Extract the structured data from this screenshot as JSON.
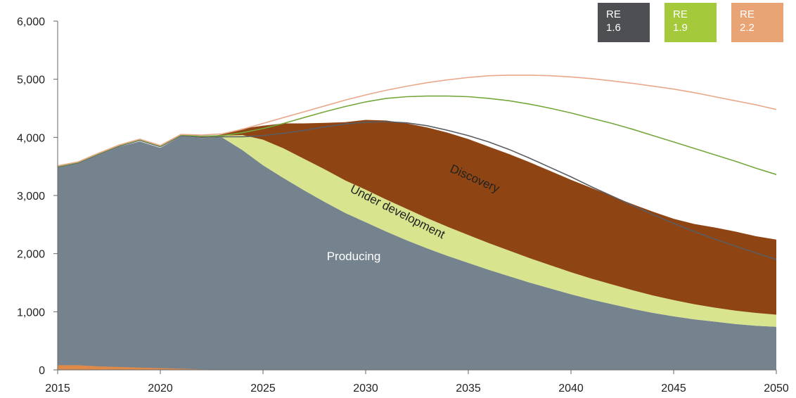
{
  "chart_data": {
    "type": "area",
    "ylim": [
      0,
      6000
    ],
    "xlim": [
      2015,
      2050
    ],
    "yticks": [
      "0",
      "1,000",
      "2,000",
      "3,000",
      "4,000",
      "5,000",
      "6,000"
    ],
    "xticks": [
      "2015",
      "2020",
      "2025",
      "2030",
      "2035",
      "2040",
      "2045",
      "2050"
    ],
    "grid": false,
    "legend_position": "top-right",
    "x": [
      2015,
      2016,
      2017,
      2018,
      2019,
      2020,
      2021,
      2022,
      2023,
      2024,
      2025,
      2026,
      2027,
      2028,
      2029,
      2030,
      2031,
      2032,
      2033,
      2034,
      2035,
      2036,
      2037,
      2038,
      2039,
      2040,
      2041,
      2042,
      2043,
      2044,
      2045,
      2046,
      2047,
      2048,
      2049,
      2050
    ],
    "stacked_series": [
      {
        "name": "Producing",
        "color": "#75838f",
        "values": [
          3480,
          3550,
          3700,
          3840,
          3930,
          3820,
          4020,
          3990,
          4000,
          3780,
          3520,
          3300,
          3090,
          2890,
          2700,
          2540,
          2380,
          2230,
          2090,
          1960,
          1840,
          1720,
          1610,
          1500,
          1400,
          1300,
          1210,
          1130,
          1050,
          980,
          920,
          870,
          830,
          790,
          760,
          740
        ]
      },
      {
        "name": "Under development",
        "color": "#d8e48e",
        "values": [
          0,
          0,
          0,
          0,
          0,
          0,
          0,
          0,
          30,
          260,
          440,
          510,
          540,
          560,
          560,
          560,
          550,
          540,
          520,
          500,
          480,
          460,
          440,
          420,
          400,
          380,
          360,
          340,
          320,
          300,
          280,
          260,
          240,
          230,
          220,
          210
        ]
      },
      {
        "name": "Discovery",
        "color": "#8f4413",
        "values": [
          0,
          0,
          0,
          0,
          0,
          0,
          0,
          0,
          20,
          110,
          240,
          430,
          610,
          800,
          1000,
          1200,
          1360,
          1470,
          1560,
          1620,
          1650,
          1660,
          1660,
          1650,
          1620,
          1590,
          1560,
          1520,
          1480,
          1440,
          1400,
          1380,
          1380,
          1360,
          1320,
          1290
        ]
      }
    ],
    "bottom_series": {
      "color": "#e08a4a",
      "values": [
        80,
        80,
        60,
        50,
        40,
        30,
        20,
        10,
        5,
        0,
        0,
        0,
        0,
        0,
        0,
        0,
        0,
        0,
        0,
        0,
        0,
        0,
        0,
        0,
        0,
        0,
        0,
        0,
        0,
        0,
        0,
        0,
        0,
        0,
        0,
        0
      ]
    },
    "line_series": [
      {
        "name": "RE 1.6",
        "color": "#5a5e63",
        "values": [
          3490,
          3560,
          3710,
          3850,
          3950,
          3840,
          4030,
          4000,
          4010,
          4010,
          4030,
          4070,
          4120,
          4180,
          4230,
          4260,
          4270,
          4250,
          4200,
          4120,
          4030,
          3920,
          3790,
          3640,
          3480,
          3320,
          3150,
          2990,
          2830,
          2670,
          2520,
          2380,
          2250,
          2130,
          2010,
          1900
        ]
      },
      {
        "name": "RE 1.9",
        "color": "#76a73d",
        "values": [
          3500,
          3570,
          3720,
          3860,
          3960,
          3850,
          4040,
          4020,
          4030,
          4080,
          4150,
          4240,
          4340,
          4440,
          4530,
          4610,
          4670,
          4700,
          4710,
          4710,
          4700,
          4670,
          4630,
          4570,
          4500,
          4420,
          4330,
          4240,
          4140,
          4030,
          3920,
          3810,
          3700,
          3590,
          3470,
          3360
        ]
      },
      {
        "name": "RE 2.2",
        "color": "#e8a88a",
        "values": [
          3510,
          3580,
          3730,
          3870,
          3970,
          3860,
          4050,
          4040,
          4060,
          4140,
          4240,
          4340,
          4440,
          4540,
          4640,
          4730,
          4810,
          4880,
          4940,
          4990,
          5030,
          5060,
          5070,
          5070,
          5060,
          5040,
          5010,
          4970,
          4930,
          4880,
          4830,
          4770,
          4700,
          4630,
          4560,
          4480
        ]
      }
    ],
    "annotations": [
      "Producing",
      "Under development",
      "Discovery"
    ],
    "legend": [
      {
        "label_line1": "RE",
        "label_line2": "1.6",
        "color": "#4d4f52"
      },
      {
        "label_line1": "RE",
        "label_line2": "1.9",
        "color": "#a4c93a"
      },
      {
        "label_line1": "RE",
        "label_line2": "2.2",
        "color": "#e8a474"
      }
    ]
  }
}
